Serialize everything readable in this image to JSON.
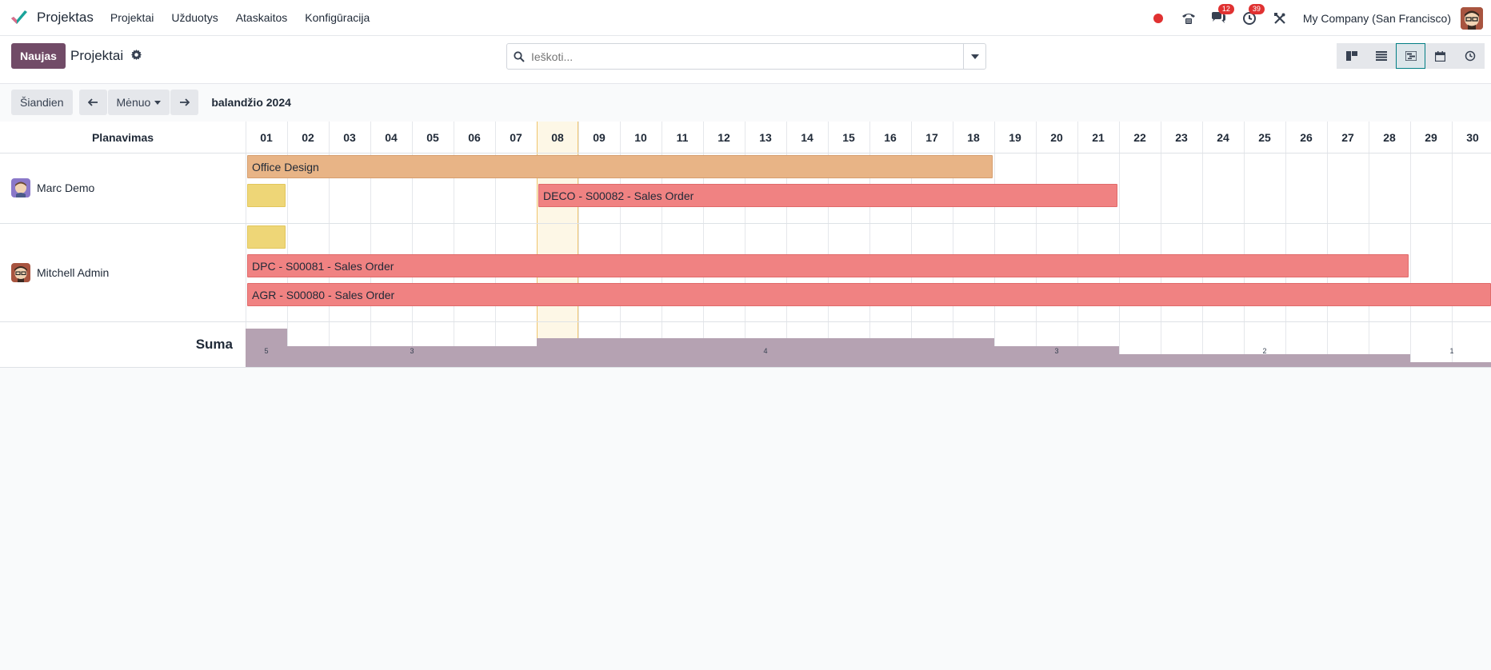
{
  "navbar": {
    "app_name": "Projektas",
    "menu": [
      "Projektai",
      "Užduotys",
      "Ataskaitos",
      "Konfigūracija"
    ],
    "messages_count": "12",
    "activities_count": "39",
    "company": "My Company (San Francisco)"
  },
  "control": {
    "new_label": "Naujas",
    "title": "Projektai",
    "search_placeholder": "Ieškoti...",
    "views": [
      "kanban-view-icon",
      "list-view-icon",
      "gantt-view-icon",
      "calendar-view-icon",
      "activity-view-icon"
    ],
    "active_view": "gantt-view-icon"
  },
  "gantt_toolbar": {
    "today_label": "Šiandien",
    "scale_label": "Mėnuo",
    "period": "balandžio 2024"
  },
  "gantt": {
    "header_label": "Planavimas",
    "days": [
      "01",
      "02",
      "03",
      "04",
      "05",
      "06",
      "07",
      "08",
      "09",
      "10",
      "11",
      "12",
      "13",
      "14",
      "15",
      "16",
      "17",
      "18",
      "19",
      "20",
      "21",
      "22",
      "23",
      "24",
      "25",
      "26",
      "27",
      "28",
      "29",
      "30"
    ],
    "today": "08",
    "resources": [
      {
        "name": "Marc Demo"
      },
      {
        "name": "Mitchell Admin"
      }
    ],
    "pills": [
      {
        "label": "Office Design",
        "start": 1,
        "end": 18,
        "color": "orange"
      },
      {
        "label": "",
        "start": 1,
        "end": 1,
        "color": "yellow"
      },
      {
        "label": "DECO - S00082 - Sales Order",
        "start": 8,
        "end": 21,
        "color": "red"
      },
      {
        "label": "",
        "start": 1,
        "end": 1,
        "color": "yellow"
      },
      {
        "label": "DPC - S00081 - Sales Order",
        "start": 1,
        "end": 28,
        "color": "red"
      },
      {
        "label": "AGR - S00080 - Sales Order",
        "start": 1,
        "end": 30,
        "color": "red"
      }
    ],
    "total_label": "Suma",
    "totals": [
      {
        "start": 1,
        "end": 1,
        "value": "5"
      },
      {
        "start": 2,
        "end": 7,
        "value": "3"
      },
      {
        "start": 8,
        "end": 18,
        "value": "4"
      },
      {
        "start": 19,
        "end": 21,
        "value": "3"
      },
      {
        "start": 22,
        "end": 28,
        "value": "2"
      },
      {
        "start": 29,
        "end": 30,
        "value": "1"
      }
    ]
  },
  "colors": {
    "brand": "#714b67",
    "pill_orange": "#e8b486",
    "pill_red": "#f08282",
    "pill_yellow": "#eed677",
    "total_bar": "#b5a2b2",
    "today_column": "#fdf7e6"
  }
}
